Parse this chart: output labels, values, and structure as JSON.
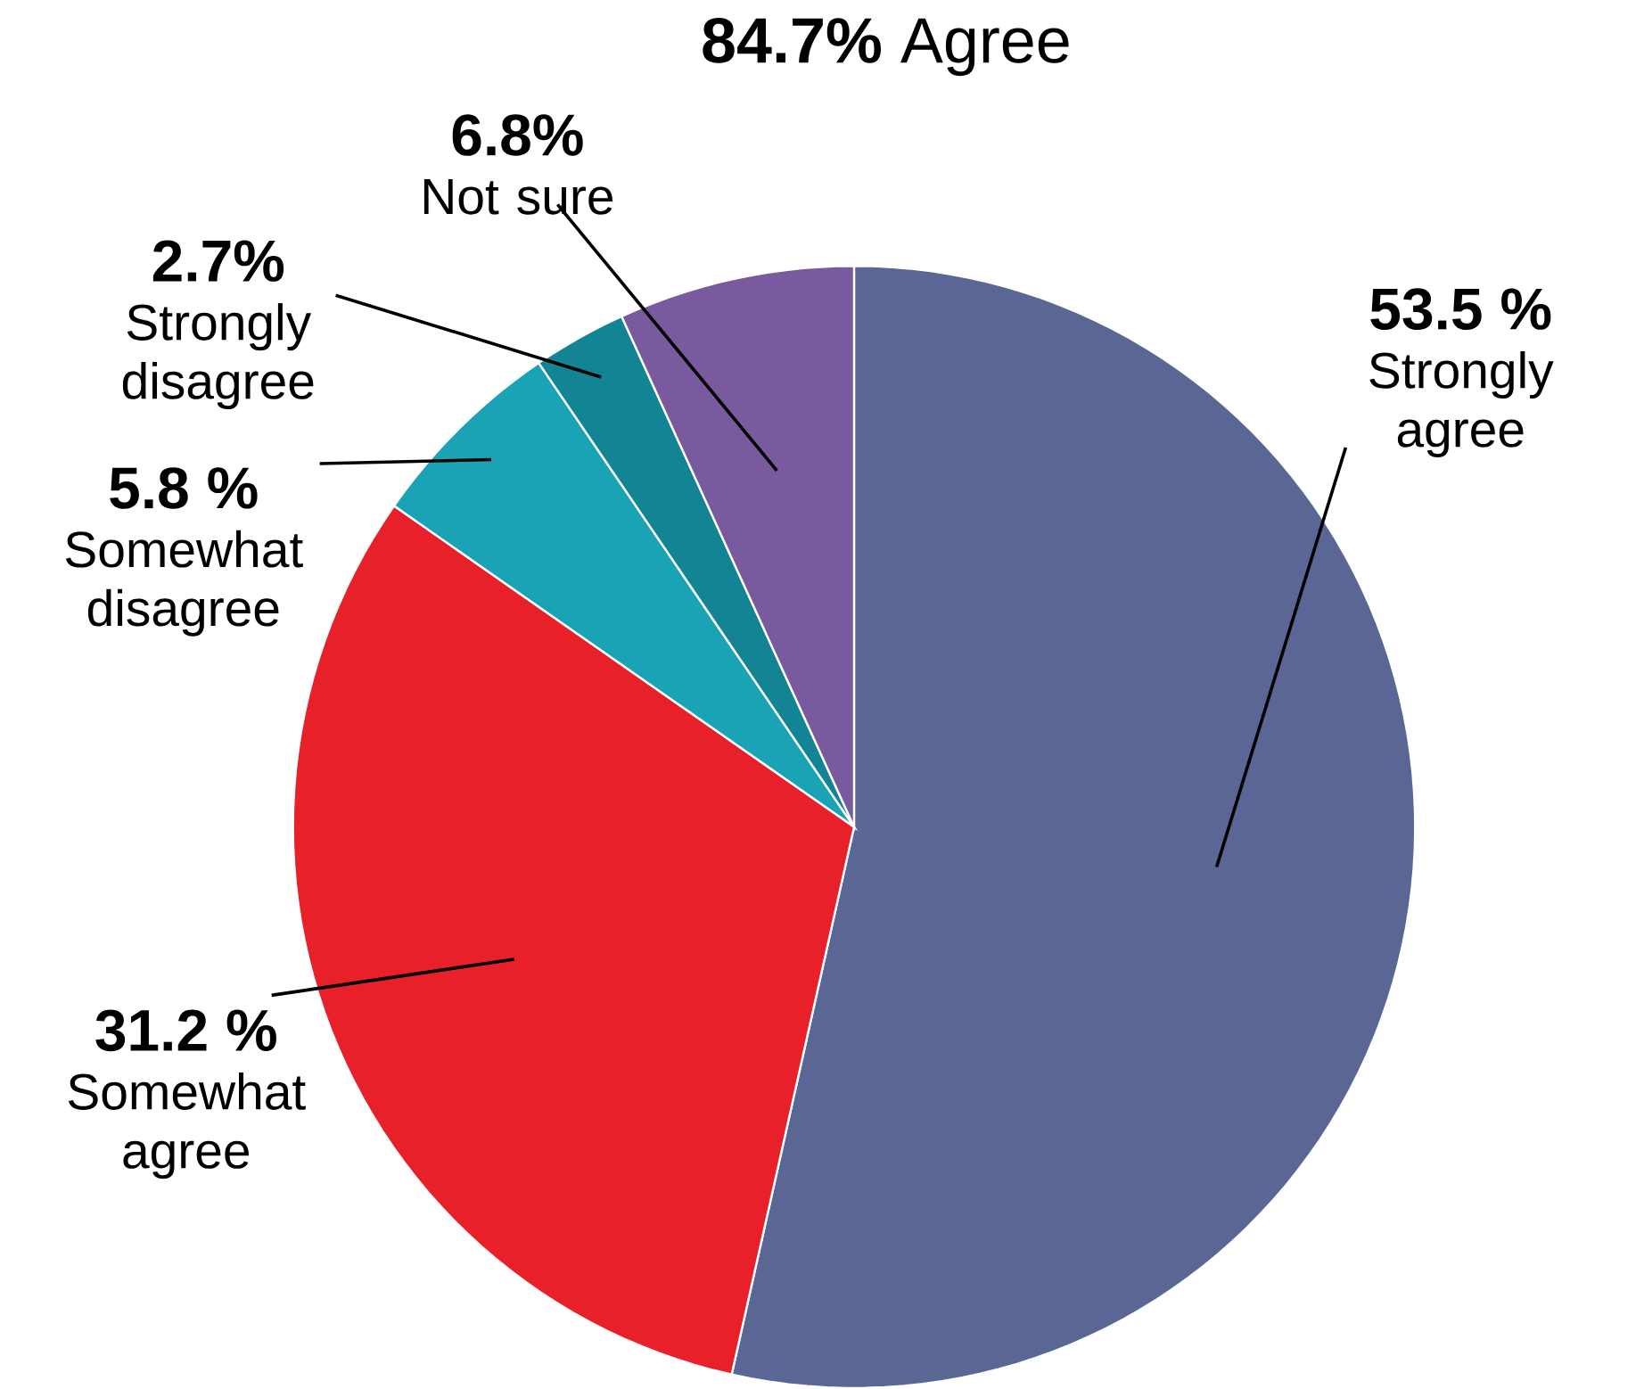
{
  "chart_data": {
    "type": "pie",
    "title": "**84.7%** Agree",
    "categories": [
      "Strongly agree",
      "Somewhat agree",
      "Somewhat disagree",
      "Strongly disagree",
      "Not sure"
    ],
    "values": [
      53.5,
      31.2,
      5.8,
      2.7,
      6.8
    ],
    "value_labels": [
      "53.5 %",
      "31.2 %",
      "5.8 %",
      "2.7%",
      "6.8%"
    ],
    "colors": [
      "#5a6795",
      "#e8202a",
      "#1aa3b5",
      "#128494",
      "#7a5a9e"
    ]
  }
}
